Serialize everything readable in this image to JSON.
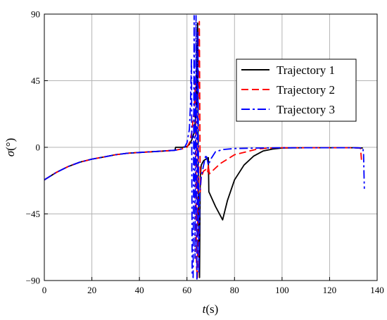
{
  "chart_data": {
    "type": "line",
    "title": "",
    "xlabel": {
      "italic": "t",
      "rest": "(s)"
    },
    "ylabel": {
      "italic": "σ",
      "rest": "(°)"
    },
    "xlim": [
      0,
      140
    ],
    "ylim": [
      -90,
      90
    ],
    "x_ticks": [
      "0",
      "20",
      "40",
      "60",
      "80",
      "100",
      "120",
      "140"
    ],
    "y_ticks": [
      "−90",
      "−45",
      "0",
      "45",
      "90"
    ],
    "grid": true,
    "legend_position": "top-right",
    "series": [
      {
        "name": "Trajectory 1",
        "color": "#000000",
        "dash": "solid",
        "points": [
          [
            0,
            -22
          ],
          [
            5,
            -17
          ],
          [
            10,
            -13
          ],
          [
            15,
            -10
          ],
          [
            20,
            -8
          ],
          [
            25,
            -6.5
          ],
          [
            30,
            -5
          ],
          [
            35,
            -4
          ],
          [
            40,
            -3.5
          ],
          [
            45,
            -3
          ],
          [
            50,
            -2.5
          ],
          [
            55,
            -2
          ],
          [
            55.2,
            0
          ],
          [
            58,
            0
          ],
          [
            60,
            0.5
          ],
          [
            61,
            2
          ],
          [
            62,
            5
          ],
          [
            63,
            10
          ],
          [
            63.5,
            18
          ],
          [
            64,
            30
          ],
          [
            64.3,
            60
          ],
          [
            64.5,
            84
          ],
          [
            64.7,
            -10
          ],
          [
            65,
            -70
          ],
          [
            65.3,
            -88
          ],
          [
            65.6,
            -20
          ],
          [
            66,
            -12
          ],
          [
            67,
            -9
          ],
          [
            68,
            -8
          ],
          [
            69,
            -7
          ],
          [
            69.2,
            -30
          ],
          [
            72,
            -40
          ],
          [
            75,
            -49
          ],
          [
            77,
            -36
          ],
          [
            80,
            -22
          ],
          [
            84,
            -12
          ],
          [
            88,
            -6
          ],
          [
            92,
            -2.5
          ],
          [
            96,
            -1.2
          ],
          [
            100,
            -0.5
          ],
          [
            110,
            -0.3
          ],
          [
            120,
            -0.3
          ],
          [
            130,
            -0.3
          ],
          [
            134,
            -0.5
          ]
        ]
      },
      {
        "name": "Trajectory 2",
        "color": "#ff0000",
        "dash": "10,5",
        "points": [
          [
            0,
            -22
          ],
          [
            5,
            -17
          ],
          [
            10,
            -13
          ],
          [
            15,
            -10
          ],
          [
            20,
            -8
          ],
          [
            25,
            -6.5
          ],
          [
            30,
            -5
          ],
          [
            35,
            -4
          ],
          [
            40,
            -3.5
          ],
          [
            45,
            -3
          ],
          [
            50,
            -2.5
          ],
          [
            55,
            -2
          ],
          [
            58,
            -1
          ],
          [
            60,
            0
          ],
          [
            61,
            3
          ],
          [
            62,
            10
          ],
          [
            63,
            25
          ],
          [
            63.6,
            45
          ],
          [
            64,
            -80
          ],
          [
            64.4,
            -88
          ],
          [
            64.8,
            40
          ],
          [
            65.2,
            85
          ],
          [
            65.6,
            -30
          ],
          [
            66,
            -20
          ],
          [
            67,
            -16
          ],
          [
            68,
            -15
          ],
          [
            68.7,
            -17
          ],
          [
            69,
            -12
          ],
          [
            69.4,
            -18
          ],
          [
            70,
            -17
          ],
          [
            72,
            -14
          ],
          [
            74,
            -11
          ],
          [
            77,
            -8
          ],
          [
            80,
            -5
          ],
          [
            85,
            -3
          ],
          [
            90,
            -1
          ],
          [
            95,
            -0.5
          ],
          [
            100,
            -0.3
          ],
          [
            110,
            -0.3
          ],
          [
            120,
            -0.3
          ],
          [
            130,
            -0.3
          ],
          [
            133,
            -0.5
          ],
          [
            133.5,
            -10
          ]
        ]
      },
      {
        "name": "Trajectory 3",
        "color": "#0000ff",
        "dash": "12,4,3,4",
        "points": [
          [
            0,
            -22
          ],
          [
            5,
            -17
          ],
          [
            10,
            -13
          ],
          [
            15,
            -10
          ],
          [
            20,
            -8
          ],
          [
            25,
            -6.5
          ],
          [
            30,
            -5
          ],
          [
            35,
            -4
          ],
          [
            40,
            -3.5
          ],
          [
            45,
            -3
          ],
          [
            50,
            -2.5
          ],
          [
            55,
            -2
          ],
          [
            58,
            -1
          ],
          [
            59,
            0
          ],
          [
            60,
            3
          ],
          [
            61,
            12
          ],
          [
            61.5,
            30
          ],
          [
            61.9,
            60
          ],
          [
            62.2,
            -85
          ],
          [
            62.6,
            -88
          ],
          [
            63,
            89
          ],
          [
            63.4,
            -75
          ],
          [
            63.8,
            89
          ],
          [
            64.2,
            -89
          ],
          [
            64.6,
            78
          ],
          [
            65,
            -85
          ],
          [
            65.4,
            -30
          ],
          [
            66,
            -20
          ],
          [
            67,
            -12
          ],
          [
            68,
            -5
          ],
          [
            68.5,
            -8
          ],
          [
            69,
            -12
          ],
          [
            70,
            -8
          ],
          [
            72,
            -3
          ],
          [
            75,
            -1.5
          ],
          [
            80,
            -0.8
          ],
          [
            90,
            -0.5
          ],
          [
            100,
            -0.3
          ],
          [
            110,
            -0.3
          ],
          [
            120,
            -0.3
          ],
          [
            130,
            -0.3
          ],
          [
            134,
            -0.5
          ],
          [
            134.3,
            -5
          ],
          [
            134.6,
            -28
          ]
        ]
      }
    ]
  }
}
